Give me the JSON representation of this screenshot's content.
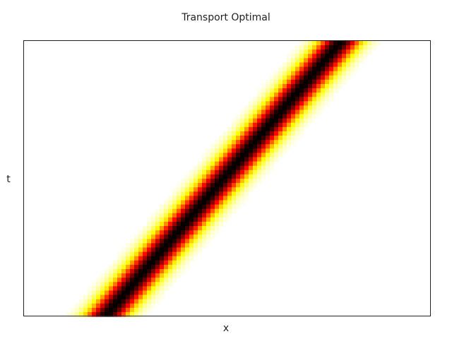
{
  "chart_data": {
    "type": "heatmap",
    "title": "Transport Optimal",
    "xlabel": "x",
    "ylabel": "t",
    "colormap": "hot (reversed): white → yellow → red → black",
    "colormap_stops": [
      "#ffffff",
      "#ffff00",
      "#ff0000",
      "#000000"
    ],
    "x_ticks_shown": false,
    "y_ticks_shown": false,
    "grid": false,
    "legend": false,
    "band": {
      "description": "Gaussian density profile translating linearly in time",
      "center_x_at_t_min": 0.2,
      "center_x_at_t_max": 0.78,
      "width_sigma": 0.035,
      "x_range": [
        0,
        1
      ],
      "t_range": [
        0,
        1
      ]
    },
    "grid_cells": {
      "nx": 96,
      "nt": 64
    }
  }
}
